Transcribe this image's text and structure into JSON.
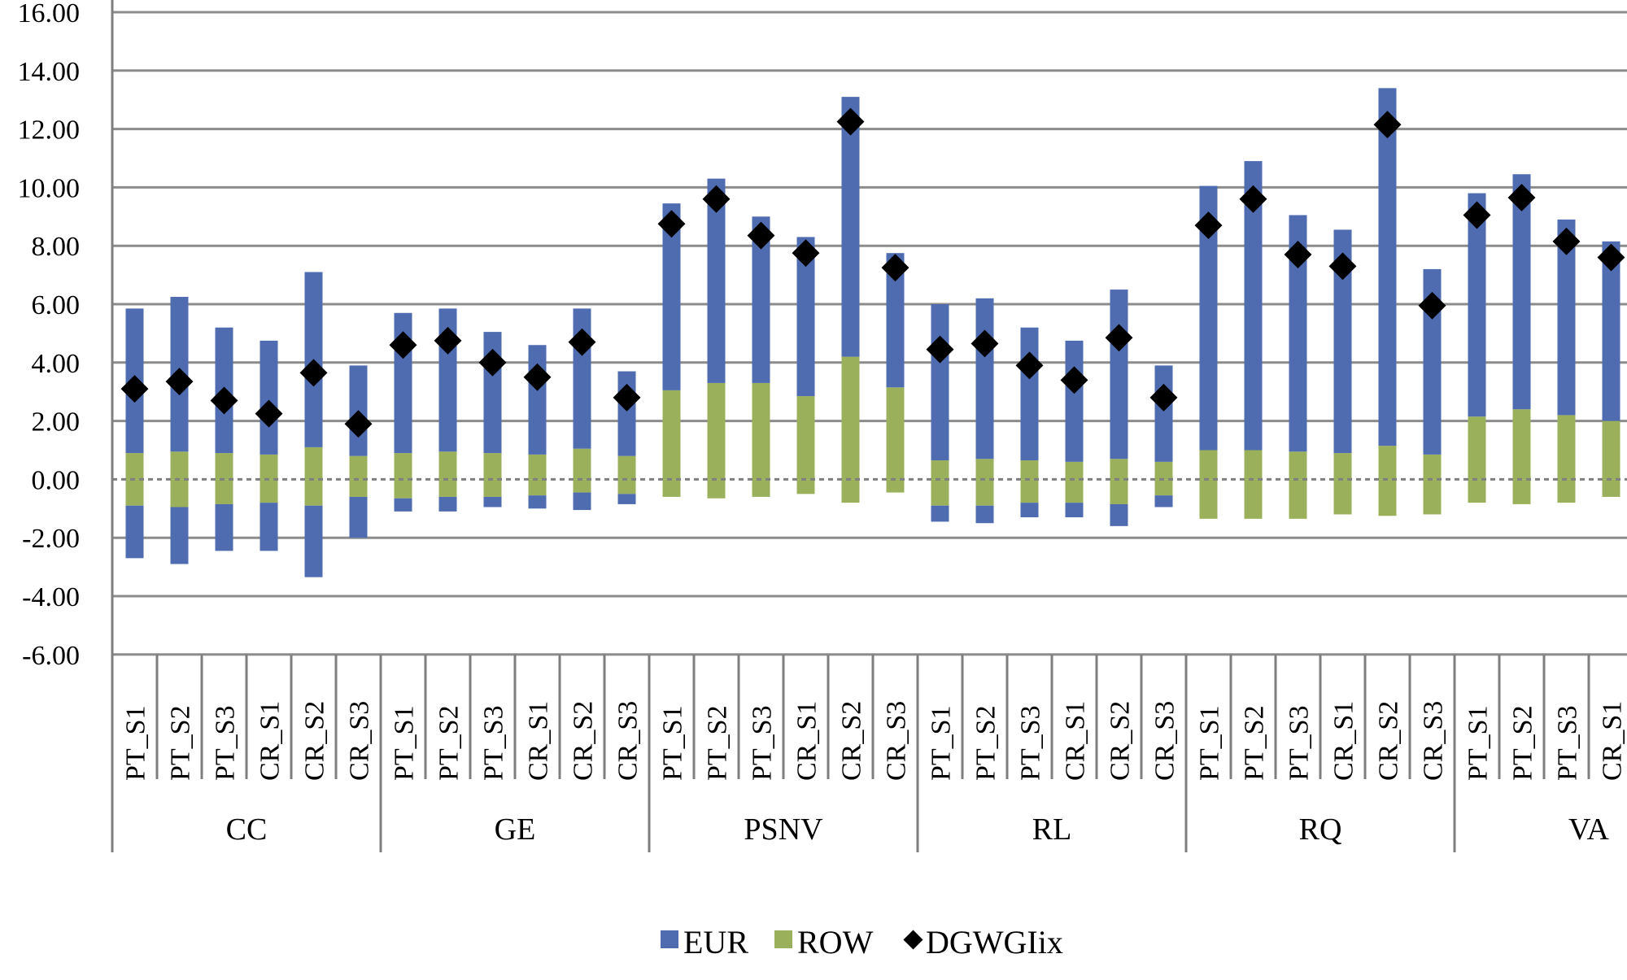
{
  "colors": {
    "eur": "#4F6CB0",
    "row": "#9BB05A",
    "marker": "#000000",
    "grid": "#8C8C8C",
    "axis": "#7F7F7F"
  },
  "chart_data": {
    "type": "bar",
    "stacking": "stacked",
    "ylim": [
      -6,
      16
    ],
    "ytick_step": 2,
    "ytick_labels": [
      "-6.00",
      "-4.00",
      "-2.00",
      "0.00",
      "2.00",
      "4.00",
      "6.00",
      "8.00",
      "10.00",
      "12.00",
      "14.00",
      "16.00"
    ],
    "grid": true,
    "legend_position": "bottom",
    "groups": [
      "CC",
      "GE",
      "PSNV",
      "RL",
      "RQ",
      "VA"
    ],
    "subcategories": [
      "PT_S1",
      "PT_S2",
      "PT_S3",
      "CR_S1",
      "CR_S2",
      "CR_S3"
    ],
    "visible_subcategories_last_group": [
      "PT_S1",
      "PT_S2",
      "PT_S3",
      "CR_S1"
    ],
    "series": [
      {
        "name": "EUR",
        "positive": [
          [
            4.95,
            5.3,
            4.3,
            3.9,
            6.0,
            3.1
          ],
          [
            4.8,
            4.9,
            4.15,
            3.75,
            4.8,
            2.9
          ],
          [
            6.4,
            7.0,
            5.7,
            5.45,
            8.9,
            4.6
          ],
          [
            5.35,
            5.5,
            4.55,
            4.15,
            5.8,
            3.3
          ],
          [
            9.05,
            9.9,
            8.1,
            7.65,
            12.25,
            6.35
          ],
          [
            7.65,
            8.05,
            6.7,
            6.15
          ]
        ],
        "negative": [
          [
            -1.8,
            -1.95,
            -1.6,
            -1.65,
            -2.45,
            -1.4
          ],
          [
            -0.45,
            -0.5,
            -0.35,
            -0.45,
            -0.6,
            -0.35
          ],
          [
            0,
            0,
            0,
            0,
            0,
            0
          ],
          [
            -0.55,
            -0.6,
            -0.5,
            -0.5,
            -0.75,
            -0.4
          ],
          [
            0,
            0,
            0,
            0,
            0,
            0
          ],
          [
            0,
            0,
            0,
            0
          ]
        ]
      },
      {
        "name": "ROW",
        "positive": [
          [
            0.9,
            0.95,
            0.9,
            0.85,
            1.1,
            0.8
          ],
          [
            0.9,
            0.95,
            0.9,
            0.85,
            1.05,
            0.8
          ],
          [
            3.05,
            3.3,
            3.3,
            2.85,
            4.2,
            3.15
          ],
          [
            0.65,
            0.7,
            0.65,
            0.6,
            0.7,
            0.6
          ],
          [
            1.0,
            1.0,
            0.95,
            0.9,
            1.15,
            0.85
          ],
          [
            2.15,
            2.4,
            2.2,
            2.0
          ]
        ],
        "negative": [
          [
            -0.9,
            -0.95,
            -0.85,
            -0.8,
            -0.9,
            -0.6
          ],
          [
            -0.65,
            -0.6,
            -0.6,
            -0.55,
            -0.45,
            -0.5
          ],
          [
            -0.6,
            -0.65,
            -0.6,
            -0.5,
            -0.8,
            -0.45
          ],
          [
            -0.9,
            -0.9,
            -0.8,
            -0.8,
            -0.85,
            -0.55
          ],
          [
            -1.35,
            -1.35,
            -1.35,
            -1.2,
            -1.25,
            -1.2
          ],
          [
            -0.8,
            -0.85,
            -0.8,
            -0.6
          ]
        ]
      }
    ],
    "markers": {
      "name": "DGWGIix",
      "values": [
        [
          3.1,
          3.35,
          2.7,
          2.25,
          3.65,
          1.9
        ],
        [
          4.6,
          4.75,
          4.0,
          3.5,
          4.7,
          2.8
        ],
        [
          8.75,
          9.6,
          8.35,
          7.75,
          12.25,
          7.25
        ],
        [
          4.45,
          4.65,
          3.9,
          3.4,
          4.85,
          2.8
        ],
        [
          8.7,
          9.6,
          7.7,
          7.3,
          12.15,
          5.95
        ],
        [
          9.05,
          9.65,
          8.15,
          7.6
        ]
      ]
    },
    "legend": [
      "EUR",
      "ROW",
      "DGWGIix"
    ]
  }
}
